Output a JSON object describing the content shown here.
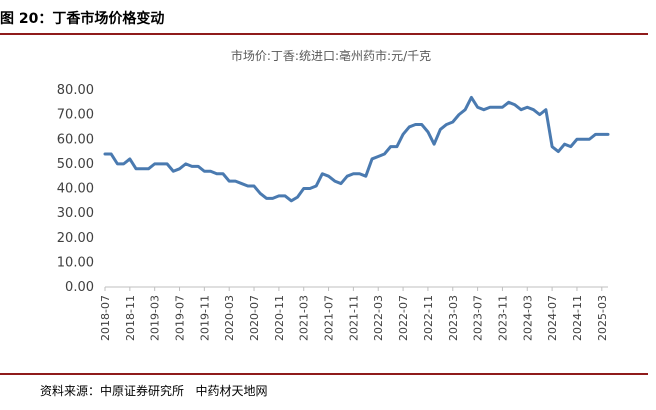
{
  "figure": {
    "title": "图 20：丁香市场价格变动",
    "source": "资料来源：中原证券研究所   中药材天地网"
  },
  "colors": {
    "accent_rule": "#8f1b1b",
    "series_line": "#4a7ab0",
    "axis": "#bfbfbf"
  },
  "chart_data": {
    "type": "line",
    "title": "市场价:丁香:统进口:亳州药市:元/千克",
    "xlabel": "",
    "ylabel": "",
    "ylim": [
      0,
      80
    ],
    "ytick_labels": [
      "0.00",
      "10.00",
      "20.00",
      "30.00",
      "40.00",
      "50.00",
      "60.00",
      "70.00",
      "80.00"
    ],
    "ytick_values": [
      0,
      10,
      20,
      30,
      40,
      50,
      60,
      70,
      80
    ],
    "xtick_labels": [
      "2018-07",
      "2018-11",
      "2019-03",
      "2019-07",
      "2019-11",
      "2020-03",
      "2020-07",
      "2020-11",
      "2021-03",
      "2021-07",
      "2021-11",
      "2022-03",
      "2022-07",
      "2022-11",
      "2023-03",
      "2023-07",
      "2023-11",
      "2024-03",
      "2024-07",
      "2024-11",
      "2025-03"
    ],
    "grid": false,
    "legend": "none",
    "x": [
      "2018-07",
      "2018-08",
      "2018-09",
      "2018-10",
      "2018-11",
      "2018-12",
      "2019-01",
      "2019-02",
      "2019-03",
      "2019-04",
      "2019-05",
      "2019-06",
      "2019-07",
      "2019-08",
      "2019-09",
      "2019-10",
      "2019-11",
      "2019-12",
      "2020-01",
      "2020-02",
      "2020-03",
      "2020-04",
      "2020-05",
      "2020-06",
      "2020-07",
      "2020-08",
      "2020-09",
      "2020-10",
      "2020-11",
      "2020-12",
      "2021-01",
      "2021-02",
      "2021-03",
      "2021-04",
      "2021-05",
      "2021-06",
      "2021-07",
      "2021-08",
      "2021-09",
      "2021-10",
      "2021-11",
      "2021-12",
      "2022-01",
      "2022-02",
      "2022-03",
      "2022-04",
      "2022-05",
      "2022-06",
      "2022-07",
      "2022-08",
      "2022-09",
      "2022-10",
      "2022-11",
      "2022-12",
      "2023-01",
      "2023-02",
      "2023-03",
      "2023-04",
      "2023-05",
      "2023-06",
      "2023-07",
      "2023-08",
      "2023-09",
      "2023-10",
      "2023-11",
      "2023-12",
      "2024-01",
      "2024-02",
      "2024-03",
      "2024-04",
      "2024-05",
      "2024-06",
      "2024-07",
      "2024-08",
      "2024-09",
      "2024-10",
      "2024-11",
      "2024-12",
      "2025-01",
      "2025-02",
      "2025-03",
      "2025-04"
    ],
    "series": [
      {
        "values": [
          54,
          54,
          50,
          50,
          52,
          48,
          48,
          48,
          50,
          50,
          50,
          47,
          48,
          50,
          49,
          49,
          47,
          47,
          46,
          46,
          43,
          43,
          42,
          41,
          41,
          38,
          36,
          36,
          37,
          37,
          35,
          36.5,
          40,
          40,
          41,
          46,
          45,
          43,
          42,
          45,
          46,
          46,
          45,
          52,
          53,
          54,
          57,
          57,
          62,
          65,
          66,
          66,
          63,
          58,
          64,
          66,
          67,
          70,
          72,
          77,
          73,
          72,
          73,
          73,
          73,
          75,
          74,
          72,
          73,
          72,
          70,
          72,
          57,
          55,
          58,
          57,
          60,
          60,
          60,
          62,
          62,
          62
        ]
      }
    ]
  }
}
